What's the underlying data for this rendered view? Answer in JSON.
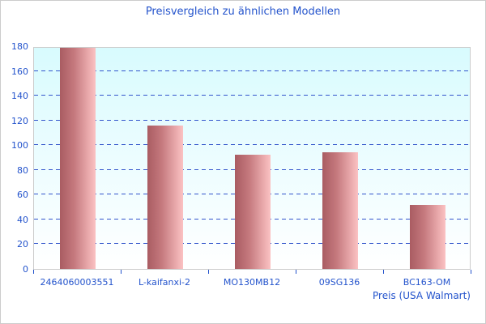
{
  "chart_data": {
    "type": "bar",
    "title": "Preisvergleich zu ähnlichen Modellen",
    "categories": [
      "2464060003551",
      "L-kaifanxi-2",
      "MO130MB12",
      "09SG136",
      "BC163-OM"
    ],
    "values": [
      179,
      116,
      92,
      94,
      52
    ],
    "xlabel": "Preis (USA Walmart)",
    "ylabel": "",
    "ylim": [
      0,
      180
    ],
    "ytick_step": 20,
    "grid": "horizontal-dashed",
    "legend": "none",
    "colors": {
      "text": "#2353cc",
      "gridline": "#3355cc",
      "bar_gradient_left": "#a95c62",
      "bar_gradient_right": "#fbc2c3",
      "plot_bg_top": "#d8fbfe",
      "plot_bg_bottom": "#ffffff",
      "border": "#cccccc"
    }
  }
}
